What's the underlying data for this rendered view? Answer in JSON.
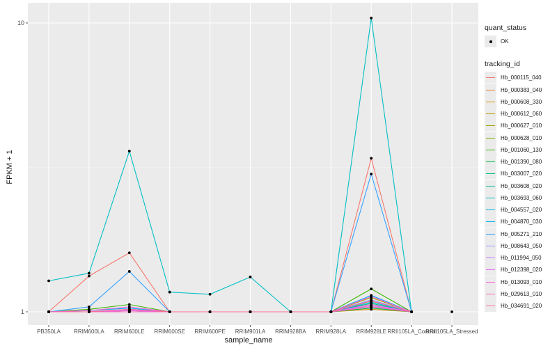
{
  "chart_data": {
    "type": "line",
    "xlabel": "sample_name",
    "ylabel": "FPKM + 1",
    "y_scale": "log10",
    "y_ticks": [
      1,
      10
    ],
    "categories": [
      "PB350LA",
      "RRIM600LA",
      "RRIM600LE",
      "RRIM600SE",
      "RRIM600PE",
      "RRIM901LA",
      "RRIM928BA",
      "RRIM928LA",
      "RRIM928LE",
      "RRII105LA_Control",
      "RRII105LA_Stressed"
    ],
    "legend_shape": {
      "title": "quant_status",
      "entries": [
        "OK"
      ]
    },
    "legend_color": {
      "title": "tracking_id"
    },
    "series": [
      {
        "name": "Hb_000115_040",
        "color": "#F8766D",
        "values": [
          1.0,
          1.33,
          1.6,
          1.0,
          1.0,
          1.0,
          1.0,
          1.0,
          3.4,
          1.0,
          null
        ]
      },
      {
        "name": "Hb_000383_040",
        "color": "#EA8331",
        "values": [
          1.0,
          1.0,
          1.01,
          1.0,
          1.0,
          1.0,
          1.0,
          1.0,
          1.06,
          1.0,
          null
        ]
      },
      {
        "name": "Hb_000608_330",
        "color": "#D89000",
        "values": [
          1.0,
          1.0,
          1.0,
          1.0,
          1.0,
          1.0,
          1.0,
          1.0,
          1.02,
          1.0,
          null
        ]
      },
      {
        "name": "Hb_000612_060",
        "color": "#C09B00",
        "values": [
          1.0,
          1.0,
          1.0,
          1.0,
          1.0,
          1.0,
          1.0,
          1.0,
          1.05,
          1.0,
          null
        ]
      },
      {
        "name": "Hb_000627_010",
        "color": "#A3A500",
        "values": [
          1.0,
          1.0,
          1.02,
          1.0,
          1.0,
          1.0,
          1.0,
          1.0,
          1.12,
          1.0,
          null
        ]
      },
      {
        "name": "Hb_000628_010",
        "color": "#7CAE00",
        "values": [
          1.0,
          1.0,
          1.01,
          1.0,
          1.0,
          1.0,
          1.0,
          1.0,
          1.09,
          1.0,
          null
        ]
      },
      {
        "name": "Hb_001060_130",
        "color": "#39B600",
        "values": [
          1.0,
          1.02,
          1.06,
          1.0,
          1.0,
          1.0,
          1.0,
          1.0,
          1.2,
          1.0,
          null
        ]
      },
      {
        "name": "Hb_001390_080",
        "color": "#00BB4E",
        "values": [
          1.0,
          1.0,
          1.0,
          1.0,
          1.0,
          1.0,
          1.0,
          1.0,
          1.03,
          1.0,
          null
        ]
      },
      {
        "name": "Hb_003007_020",
        "color": "#00BF7D",
        "values": [
          1.0,
          1.0,
          1.0,
          1.0,
          1.0,
          1.0,
          1.0,
          1.0,
          1.07,
          1.0,
          null
        ]
      },
      {
        "name": "Hb_003608_020",
        "color": "#00C1A3",
        "values": [
          1.0,
          1.0,
          1.0,
          1.0,
          1.0,
          1.0,
          1.0,
          1.0,
          1.04,
          1.0,
          null
        ]
      },
      {
        "name": "Hb_003693_060",
        "color": "#00BFC4",
        "values": [
          1.28,
          1.36,
          3.6,
          1.17,
          1.15,
          1.32,
          1.0,
          1.0,
          10.4,
          1.0,
          null
        ]
      },
      {
        "name": "Hb_004557_020",
        "color": "#00BAE0",
        "values": [
          1.0,
          1.0,
          1.0,
          1.0,
          1.0,
          1.0,
          1.0,
          1.0,
          1.08,
          1.0,
          null
        ]
      },
      {
        "name": "Hb_004870_030",
        "color": "#00B0F6",
        "values": [
          1.0,
          1.01,
          1.03,
          1.0,
          1.0,
          1.0,
          1.0,
          1.0,
          1.14,
          1.0,
          null
        ]
      },
      {
        "name": "Hb_005271_210",
        "color": "#35A2FF",
        "values": [
          1.0,
          1.04,
          1.38,
          1.0,
          1.0,
          1.0,
          1.0,
          1.0,
          3.0,
          1.0,
          null
        ]
      },
      {
        "name": "Hb_008643_050",
        "color": "#9590FF",
        "values": [
          1.0,
          1.0,
          1.02,
          1.0,
          1.0,
          1.0,
          1.0,
          1.0,
          1.1,
          1.0,
          null
        ]
      },
      {
        "name": "Hb_011994_050",
        "color": "#C77CFF",
        "values": [
          1.0,
          1.0,
          1.01,
          1.0,
          1.0,
          1.0,
          1.0,
          1.0,
          1.06,
          1.0,
          null
        ]
      },
      {
        "name": "Hb_012398_020",
        "color": "#E76BF3",
        "values": [
          1.0,
          1.0,
          1.01,
          1.0,
          1.0,
          1.0,
          1.0,
          1.0,
          1.05,
          1.0,
          null
        ]
      },
      {
        "name": "Hb_013093_010",
        "color": "#FA62DB",
        "values": [
          1.0,
          1.01,
          1.04,
          1.0,
          1.0,
          1.0,
          1.0,
          1.0,
          1.13,
          1.0,
          null
        ]
      },
      {
        "name": "Hb_029613_010",
        "color": "#FF62BC",
        "values": [
          1.0,
          1.0,
          1.0,
          1.0,
          1.0,
          1.0,
          1.0,
          1.0,
          1.04,
          1.0,
          null
        ]
      },
      {
        "name": "Hb_034691_020",
        "color": "#FF6C91",
        "values": [
          1.0,
          1.0,
          1.02,
          1.0,
          1.0,
          1.0,
          1.0,
          1.0,
          1.09,
          1.0,
          null
        ]
      }
    ],
    "point_color": "#000000",
    "panel_background": "#EBEBEB",
    "grid": true,
    "legend_position": "right"
  }
}
